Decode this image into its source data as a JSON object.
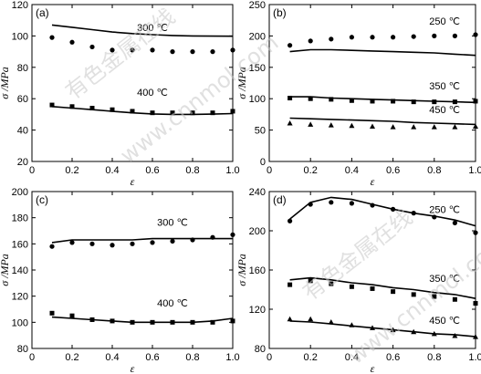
{
  "watermark": {
    "text_cn": "有色金属在线",
    "text_en": "www.cnnmol.com"
  },
  "chart_data": [
    {
      "panel": "(a)",
      "type": "scatter+line",
      "xlabel": "ε",
      "ylabel": "σ /MPa",
      "xlim": [
        0,
        1.0
      ],
      "ylim": [
        20,
        120
      ],
      "xticks": [
        "0",
        "0.2",
        "0.4",
        "0.6",
        "0.8",
        "1.0"
      ],
      "yticks": [
        "20",
        "40",
        "60",
        "80",
        "100",
        "120"
      ],
      "annotations": [
        {
          "text": "300 ℃",
          "x": 0.6,
          "y": 103
        },
        {
          "text": "400 ℃",
          "x": 0.6,
          "y": 62
        }
      ],
      "series": [
        {
          "marker": "circle",
          "kind": "scatter",
          "x": [
            0.1,
            0.2,
            0.3,
            0.4,
            0.5,
            0.6,
            0.7,
            0.8,
            0.9,
            1.0
          ],
          "y": [
            99,
            96,
            93,
            91,
            91,
            91,
            90,
            90,
            90,
            91
          ]
        },
        {
          "kind": "line",
          "x": [
            0.1,
            0.2,
            0.3,
            0.4,
            0.5,
            0.6,
            0.7,
            0.8,
            0.9,
            1.0
          ],
          "y": [
            107,
            105.5,
            104,
            102.5,
            101.5,
            100.8,
            100.3,
            100,
            99.9,
            99.8
          ]
        },
        {
          "marker": "square",
          "kind": "scatter",
          "x": [
            0.1,
            0.2,
            0.3,
            0.4,
            0.5,
            0.6,
            0.7,
            0.8,
            0.9,
            1.0
          ],
          "y": [
            56,
            55,
            54,
            53,
            52,
            51,
            51,
            51,
            51,
            52
          ]
        },
        {
          "kind": "line",
          "x": [
            0.1,
            0.2,
            0.3,
            0.4,
            0.5,
            0.6,
            0.7,
            0.8,
            0.9,
            1.0
          ],
          "y": [
            55,
            54,
            53,
            52,
            51,
            50.3,
            50,
            50,
            50.2,
            50.5
          ]
        }
      ]
    },
    {
      "panel": "(b)",
      "type": "scatter+line",
      "xlabel": "ε",
      "ylabel": "σ /MPa",
      "xlim": [
        0,
        1.0
      ],
      "ylim": [
        0,
        250
      ],
      "xticks": [
        "0",
        "0.2",
        "0.4",
        "0.6",
        "0.8",
        "1.0"
      ],
      "yticks": [
        "0",
        "50",
        "100",
        "150",
        "200",
        "250"
      ],
      "annotations": [
        {
          "text": "250 ℃",
          "x": 0.85,
          "y": 218
        },
        {
          "text": "350 ℃",
          "x": 0.85,
          "y": 115
        },
        {
          "text": "450 ℃",
          "x": 0.85,
          "y": 77
        }
      ],
      "series": [
        {
          "marker": "circle",
          "kind": "scatter",
          "x": [
            0.1,
            0.2,
            0.3,
            0.4,
            0.5,
            0.6,
            0.7,
            0.8,
            0.9,
            1.0
          ],
          "y": [
            185,
            192,
            195,
            198,
            198,
            198,
            199,
            200,
            200,
            202
          ]
        },
        {
          "kind": "line",
          "x": [
            0.1,
            0.2,
            0.3,
            0.4,
            0.5,
            0.6,
            0.7,
            0.8,
            0.9,
            1.0
          ],
          "y": [
            175,
            178,
            178,
            177,
            176,
            175,
            174,
            173,
            171,
            169
          ]
        },
        {
          "marker": "square",
          "kind": "scatter",
          "x": [
            0.1,
            0.2,
            0.3,
            0.4,
            0.5,
            0.6,
            0.7,
            0.8,
            0.9,
            1.0
          ],
          "y": [
            101,
            100,
            99,
            97,
            96,
            96,
            95,
            95,
            95,
            96
          ]
        },
        {
          "kind": "line",
          "x": [
            0.1,
            0.2,
            0.3,
            0.4,
            0.5,
            0.6,
            0.7,
            0.8,
            0.9,
            1.0
          ],
          "y": [
            103,
            103,
            101,
            100,
            99,
            98,
            97,
            96,
            95,
            94
          ]
        },
        {
          "marker": "triangle",
          "kind": "scatter",
          "x": [
            0.1,
            0.2,
            0.3,
            0.4,
            0.5,
            0.6,
            0.7,
            0.8,
            0.9,
            1.0
          ],
          "y": [
            61,
            59,
            58,
            57,
            56,
            55,
            55,
            55,
            55,
            56
          ]
        },
        {
          "kind": "line",
          "x": [
            0.1,
            0.2,
            0.3,
            0.4,
            0.5,
            0.6,
            0.7,
            0.8,
            0.9,
            1.0
          ],
          "y": [
            69,
            68,
            67,
            66,
            65,
            64,
            62,
            61,
            60,
            59
          ]
        }
      ]
    },
    {
      "panel": "(c)",
      "type": "scatter+line",
      "xlabel": "ε",
      "ylabel": "σ /MPa",
      "xlim": [
        0,
        1.0
      ],
      "ylim": [
        80,
        200
      ],
      "xticks": [
        "0",
        "0.2",
        "0.4",
        "0.6",
        "0.8",
        "1.0"
      ],
      "yticks": [
        "80",
        "100",
        "120",
        "140",
        "160",
        "180",
        "200"
      ],
      "annotations": [
        {
          "text": "300 ℃",
          "x": 0.7,
          "y": 174
        },
        {
          "text": "400 ℃",
          "x": 0.7,
          "y": 112
        }
      ],
      "series": [
        {
          "marker": "circle",
          "kind": "scatter",
          "x": [
            0.1,
            0.2,
            0.3,
            0.4,
            0.5,
            0.6,
            0.7,
            0.8,
            0.9,
            1.0
          ],
          "y": [
            158,
            161,
            160,
            159,
            160,
            161,
            162,
            163,
            165,
            167
          ]
        },
        {
          "kind": "line",
          "x": [
            0.1,
            0.2,
            0.3,
            0.4,
            0.5,
            0.6,
            0.7,
            0.8,
            0.9,
            1.0
          ],
          "y": [
            161,
            163,
            163,
            163,
            163,
            164,
            164,
            164,
            164,
            164
          ]
        },
        {
          "marker": "square",
          "kind": "scatter",
          "x": [
            0.1,
            0.2,
            0.3,
            0.4,
            0.5,
            0.6,
            0.7,
            0.8,
            0.9,
            1.0
          ],
          "y": [
            107,
            105,
            102,
            101,
            100,
            100,
            100,
            100,
            100,
            101
          ]
        },
        {
          "kind": "line",
          "x": [
            0.1,
            0.2,
            0.3,
            0.4,
            0.5,
            0.6,
            0.7,
            0.8,
            0.9,
            1.0
          ],
          "y": [
            104,
            103,
            102,
            101,
            100,
            100,
            100,
            100,
            101,
            103
          ]
        }
      ]
    },
    {
      "panel": "(d)",
      "type": "scatter+line",
      "xlabel": "ε",
      "ylabel": "σ /MPa",
      "xlim": [
        0,
        1.0
      ],
      "ylim": [
        80,
        240
      ],
      "xticks": [
        "0",
        "0.2",
        "0.4",
        "0.6",
        "0.8",
        "1.0"
      ],
      "yticks": [
        "80",
        "120",
        "160",
        "200",
        "240"
      ],
      "annotations": [
        {
          "text": "250 ℃",
          "x": 0.85,
          "y": 218
        },
        {
          "text": "350 ℃",
          "x": 0.85,
          "y": 148
        },
        {
          "text": "450 ℃",
          "x": 0.85,
          "y": 105
        }
      ],
      "series": [
        {
          "marker": "circle",
          "kind": "scatter",
          "x": [
            0.1,
            0.2,
            0.3,
            0.4,
            0.5,
            0.6,
            0.7,
            0.8,
            0.9,
            1.0
          ],
          "y": [
            210,
            227,
            229,
            228,
            226,
            222,
            218,
            214,
            208,
            198
          ]
        },
        {
          "kind": "line",
          "x": [
            0.1,
            0.2,
            0.3,
            0.4,
            0.5,
            0.6,
            0.7,
            0.8,
            0.9,
            1.0
          ],
          "y": [
            212,
            229,
            234,
            232,
            227,
            222,
            218,
            215,
            211,
            205
          ]
        },
        {
          "marker": "square",
          "kind": "scatter",
          "x": [
            0.1,
            0.2,
            0.3,
            0.4,
            0.5,
            0.6,
            0.7,
            0.8,
            0.9,
            1.0
          ],
          "y": [
            145,
            149,
            146,
            143,
            141,
            138,
            135,
            133,
            130,
            126
          ]
        },
        {
          "kind": "line",
          "x": [
            0.1,
            0.2,
            0.3,
            0.4,
            0.5,
            0.6,
            0.7,
            0.8,
            0.9,
            1.0
          ],
          "y": [
            150,
            152,
            150,
            147,
            145,
            142,
            140,
            137,
            135,
            131
          ]
        },
        {
          "marker": "triangle",
          "kind": "scatter",
          "x": [
            0.1,
            0.2,
            0.3,
            0.4,
            0.5,
            0.6,
            0.7,
            0.8,
            0.9,
            1.0
          ],
          "y": [
            110,
            110,
            107,
            104,
            101,
            99,
            97,
            95,
            93,
            92
          ]
        },
        {
          "kind": "line",
          "x": [
            0.1,
            0.2,
            0.3,
            0.4,
            0.5,
            0.6,
            0.7,
            0.8,
            0.9,
            1.0
          ],
          "y": [
            108,
            107,
            105,
            103,
            101,
            99,
            97,
            95,
            94,
            92
          ]
        }
      ]
    }
  ]
}
